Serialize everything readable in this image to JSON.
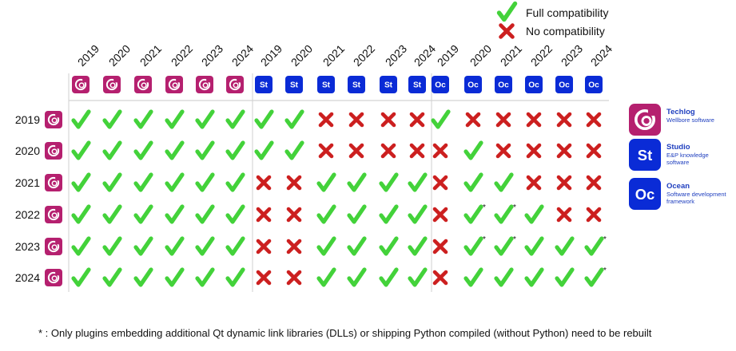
{
  "legend": {
    "full_label": "Full compatibility",
    "none_label": "No compatibility"
  },
  "colors": {
    "check": "#43d23a",
    "cross": "#cc1f1f",
    "techlog": "#b5206f",
    "studio": "#0a2bd6",
    "ocean": "#0a2bd6"
  },
  "products": [
    {
      "id": "techlog",
      "badge": "",
      "icon": "techlog-swirl-icon"
    },
    {
      "id": "studio",
      "badge": "St",
      "icon": "studio-badge-icon"
    },
    {
      "id": "ocean",
      "badge": "Oc",
      "icon": "ocean-badge-icon"
    }
  ],
  "side_legend": [
    {
      "product": "techlog",
      "name": "Techlog",
      "desc_lines": [
        "Wellbore software"
      ]
    },
    {
      "product": "studio",
      "name": "Studio",
      "desc_lines": [
        "E&P knowledge",
        "software"
      ]
    },
    {
      "product": "ocean",
      "name": "Ocean",
      "desc_lines": [
        "Software development",
        "framework"
      ]
    }
  ],
  "footnote": "* : Only plugins embedding additional Qt dynamic link libraries (DLLs) or shipping Python compiled (without Python) need to be rebuilt",
  "chart_data": {
    "type": "table",
    "title": "",
    "row_product": "techlog",
    "rows": [
      "2019",
      "2020",
      "2021",
      "2022",
      "2023",
      "2024"
    ],
    "column_groups": [
      {
        "product": "techlog",
        "years": [
          "2019",
          "2020",
          "2021",
          "2022",
          "2023",
          "2024"
        ]
      },
      {
        "product": "studio",
        "years": [
          "2019",
          "2020",
          "2021",
          "2022",
          "2023",
          "2024"
        ]
      },
      {
        "product": "ocean",
        "years": [
          "2019",
          "2020",
          "2021",
          "2022",
          "2023",
          "2024"
        ]
      }
    ],
    "value_legend": {
      "1": "Full compatibility",
      "0": "No compatibility"
    },
    "values": [
      [
        1,
        1,
        1,
        1,
        1,
        1,
        1,
        1,
        0,
        0,
        0,
        0,
        1,
        0,
        0,
        0,
        0,
        0
      ],
      [
        1,
        1,
        1,
        1,
        1,
        1,
        1,
        1,
        0,
        0,
        0,
        0,
        0,
        1,
        0,
        0,
        0,
        0
      ],
      [
        1,
        1,
        1,
        1,
        1,
        1,
        0,
        0,
        1,
        1,
        1,
        1,
        0,
        1,
        1,
        0,
        0,
        0
      ],
      [
        1,
        1,
        1,
        1,
        1,
        1,
        0,
        0,
        1,
        1,
        1,
        1,
        0,
        1,
        1,
        1,
        0,
        0
      ],
      [
        1,
        1,
        1,
        1,
        1,
        1,
        0,
        0,
        1,
        1,
        1,
        1,
        0,
        1,
        1,
        1,
        1,
        1
      ],
      [
        1,
        1,
        1,
        1,
        1,
        1,
        0,
        0,
        1,
        1,
        1,
        1,
        0,
        1,
        1,
        1,
        1,
        1
      ]
    ],
    "footnote_marked_cells": [
      [
        3,
        13
      ],
      [
        3,
        14
      ],
      [
        4,
        13
      ],
      [
        4,
        14
      ],
      [
        4,
        17
      ],
      [
        5,
        17
      ]
    ],
    "footnote_marker": "*"
  }
}
